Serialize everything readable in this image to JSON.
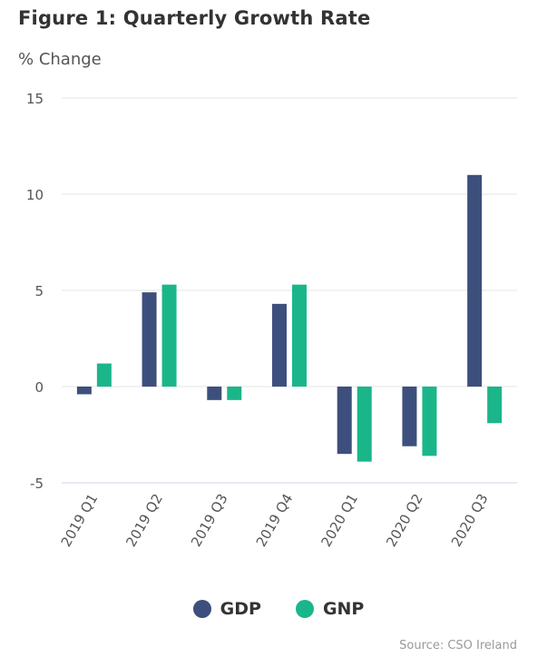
{
  "title": "Figure 1: Quarterly Growth Rate",
  "y_unit": "% Change",
  "source": "Source: CSO Ireland",
  "colors": {
    "gdp": "#3d4f7c",
    "gnp": "#1ab68a",
    "grid": "#e6e6e6",
    "axis": "#ccd6eb"
  },
  "chart_data": {
    "type": "bar",
    "categories": [
      "2019 Q1",
      "2019 Q2",
      "2019 Q3",
      "2019 Q4",
      "2020 Q1",
      "2020 Q2",
      "2020 Q3"
    ],
    "series": [
      {
        "name": "GDP",
        "values": [
          -0.4,
          4.9,
          -0.7,
          4.3,
          -3.5,
          -3.1,
          11.0
        ]
      },
      {
        "name": "GNP",
        "values": [
          1.2,
          5.3,
          -0.7,
          5.3,
          -3.9,
          -3.6,
          -1.9
        ]
      }
    ],
    "y_ticks": [
      -5,
      0,
      5,
      10,
      15
    ],
    "ylim": [
      -5,
      15
    ],
    "grid": true,
    "legend": "bottom-center"
  }
}
